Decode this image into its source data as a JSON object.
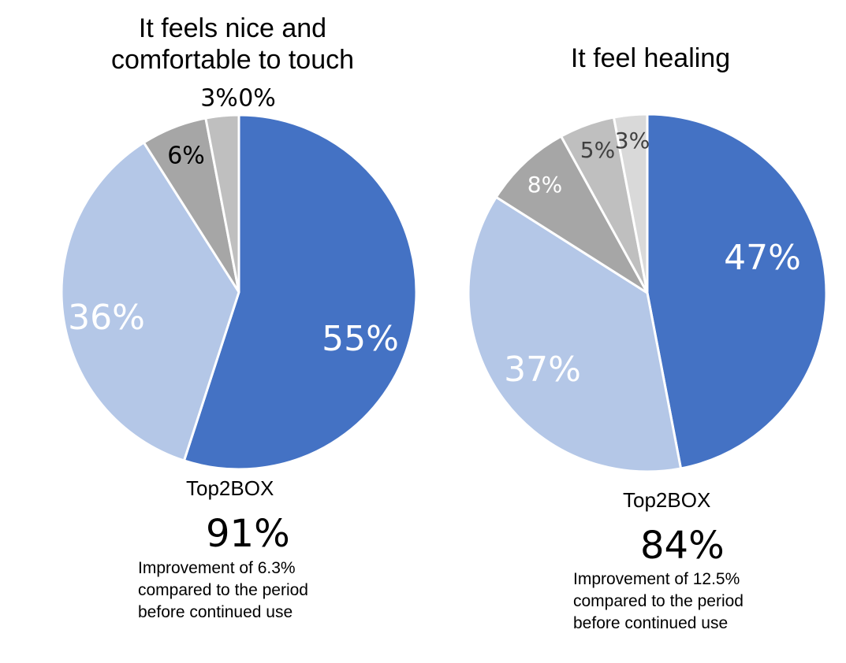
{
  "charts": [
    {
      "title": "It feels nice and comfortable to touch",
      "top2box_label": "Top2BOX",
      "top2box_value": "91%",
      "note": "Improvement  of 6.3%\ncompared to the period\nbefore continued  use"
    },
    {
      "title": "It feel healing",
      "top2box_label": "Top2BOX",
      "top2box_value": "84%",
      "note": "Improvement  of 12.5%\ncompared to the period\nbefore continued  use"
    }
  ],
  "chart_data": [
    {
      "type": "pie",
      "title": "It feels nice and comfortable to touch",
      "slices": [
        {
          "value": 55,
          "label": "55%",
          "color": "#4472C4",
          "label_color": "#FFFFFF"
        },
        {
          "value": 36,
          "label": "36%",
          "color": "#B4C7E7",
          "label_color": "#FFFFFF"
        },
        {
          "value": 6,
          "label": "6%",
          "color": "#A6A6A6",
          "label_color": "#000000"
        },
        {
          "value": 3,
          "label": "3%",
          "color": "#BFBFBF",
          "label_color": "#000000"
        },
        {
          "value": 0,
          "label": "0%",
          "color": "#D9D9D9",
          "label_color": "#000000"
        }
      ]
    },
    {
      "type": "pie",
      "title": "It feel healing",
      "slices": [
        {
          "value": 47,
          "label": "47%",
          "color": "#4472C4",
          "label_color": "#FFFFFF"
        },
        {
          "value": 37,
          "label": "37%",
          "color": "#B4C7E7",
          "label_color": "#FFFFFF"
        },
        {
          "value": 8,
          "label": "8%",
          "color": "#A6A6A6",
          "label_color": "#FFFFFF"
        },
        {
          "value": 5,
          "label": "5%",
          "color": "#BFBFBF",
          "label_color": "#404040"
        },
        {
          "value": 3,
          "label": "3%",
          "color": "#D9D9D9",
          "label_color": "#404040"
        }
      ]
    }
  ]
}
